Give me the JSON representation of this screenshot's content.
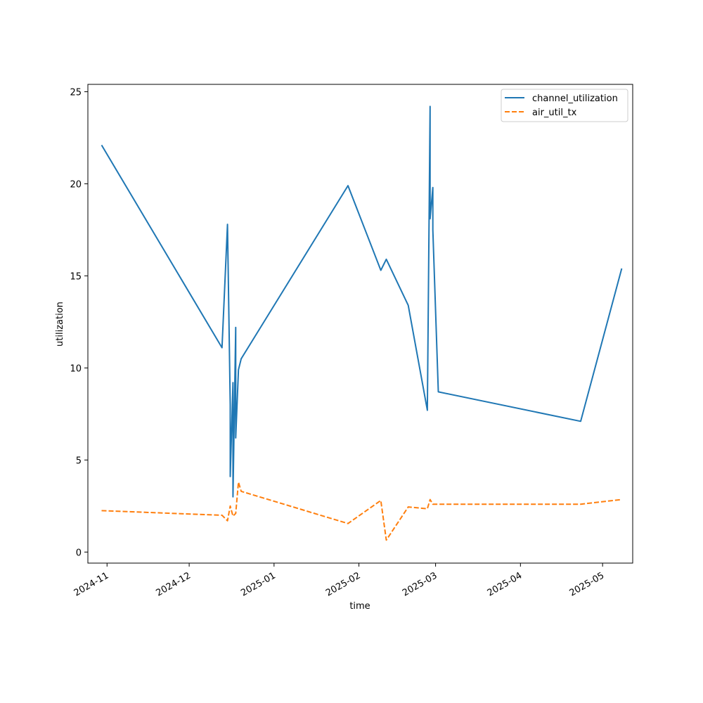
{
  "chart_data": {
    "type": "line",
    "xlabel": "time",
    "ylabel": "utilization",
    "x_axis_kind": "date",
    "xlim": [
      "2024-10-25",
      "2025-05-12"
    ],
    "ylim": [
      -0.6,
      25.4
    ],
    "x_ticks": [
      {
        "date": "2024-11-01",
        "label": "2024-11"
      },
      {
        "date": "2024-12-01",
        "label": "2024-12"
      },
      {
        "date": "2025-01-01",
        "label": "2025-01"
      },
      {
        "date": "2025-02-01",
        "label": "2025-02"
      },
      {
        "date": "2025-03-01",
        "label": "2025-03"
      },
      {
        "date": "2025-04-01",
        "label": "2025-04"
      },
      {
        "date": "2025-05-01",
        "label": "2025-05"
      }
    ],
    "y_ticks": [
      0,
      5,
      10,
      15,
      20,
      25
    ],
    "grid": false,
    "legend_position": "top-right",
    "series": [
      {
        "name": "channel_utilization",
        "color": "#1f77b4",
        "style": "solid",
        "points": [
          [
            "2024-10-30",
            22.1
          ],
          [
            "2024-12-13",
            11.1
          ],
          [
            "2024-12-15",
            17.8
          ],
          [
            "2024-12-16",
            8.0
          ],
          [
            "2024-12-16",
            4.1
          ],
          [
            "2024-12-17",
            9.2
          ],
          [
            "2024-12-17",
            3.0
          ],
          [
            "2024-12-18",
            12.2
          ],
          [
            "2024-12-18",
            6.2
          ],
          [
            "2024-12-19",
            9.9
          ],
          [
            "2024-12-20",
            10.5
          ],
          [
            "2025-01-28",
            19.9
          ],
          [
            "2025-02-09",
            15.3
          ],
          [
            "2025-02-11",
            15.9
          ],
          [
            "2025-02-19",
            13.4
          ],
          [
            "2025-02-26",
            7.7
          ],
          [
            "2025-02-27",
            24.2
          ],
          [
            "2025-02-27",
            18.1
          ],
          [
            "2025-02-28",
            19.8
          ],
          [
            "2025-02-28",
            17.5
          ],
          [
            "2025-03-02",
            8.7
          ],
          [
            "2025-04-23",
            7.1
          ],
          [
            "2025-05-08",
            15.4
          ]
        ]
      },
      {
        "name": "air_util_tx",
        "color": "#ff7f0e",
        "style": "dashed",
        "points": [
          [
            "2024-10-30",
            2.25
          ],
          [
            "2024-12-13",
            2.0
          ],
          [
            "2024-12-15",
            1.7
          ],
          [
            "2024-12-16",
            2.5
          ],
          [
            "2024-12-17",
            1.95
          ],
          [
            "2024-12-18",
            2.1
          ],
          [
            "2024-12-19",
            3.8
          ],
          [
            "2024-12-20",
            3.3
          ],
          [
            "2025-01-28",
            1.55
          ],
          [
            "2025-02-09",
            2.8
          ],
          [
            "2025-02-11",
            0.65
          ],
          [
            "2025-02-19",
            2.45
          ],
          [
            "2025-02-26",
            2.35
          ],
          [
            "2025-02-27",
            2.85
          ],
          [
            "2025-02-28",
            2.6
          ],
          [
            "2025-04-23",
            2.6
          ],
          [
            "2025-05-08",
            2.85
          ]
        ]
      }
    ]
  }
}
